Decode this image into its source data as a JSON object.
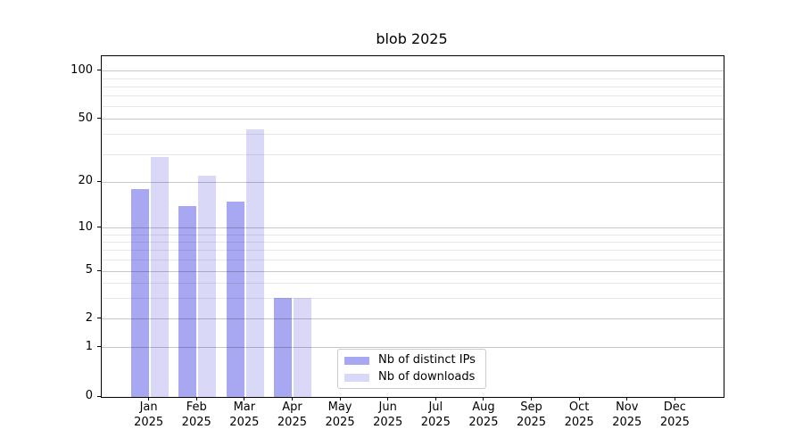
{
  "chart_data": {
    "type": "bar",
    "title": "blob 2025",
    "categories": [
      "Jan 2025",
      "Feb 2025",
      "Mar 2025",
      "Apr 2025",
      "May 2025",
      "Jun 2025",
      "Jul 2025",
      "Aug 2025",
      "Sep 2025",
      "Oct 2025",
      "Nov 2025",
      "Dec 2025"
    ],
    "series": [
      {
        "name": "Nb of distinct IPs",
        "color": "#a8a8f2",
        "values": [
          18,
          14,
          15,
          3,
          0,
          0,
          0,
          0,
          0,
          0,
          0,
          0
        ]
      },
      {
        "name": "Nb of downloads",
        "color": "#d9d9f7",
        "values": [
          29,
          22,
          43,
          3,
          0,
          0,
          0,
          0,
          0,
          0,
          0,
          0
        ]
      }
    ],
    "xlabel": "",
    "ylabel": "",
    "yscale": "symlog",
    "yticks": [
      0,
      1,
      2,
      5,
      10,
      20,
      50,
      100
    ],
    "yticks_minor": [
      3,
      4,
      6,
      7,
      8,
      9,
      30,
      40,
      60,
      70,
      80,
      90
    ],
    "ylim": [
      0,
      125
    ],
    "grid": true,
    "legend_position": "inside-bottom-center"
  },
  "colors": {
    "grid_major": "rgba(0,0,0,0.22)",
    "grid_minor": "rgba(0,0,0,0.09)",
    "spine": "#000000",
    "text": "#000000",
    "legend_border": "#cccccc",
    "background": "#ffffff"
  }
}
